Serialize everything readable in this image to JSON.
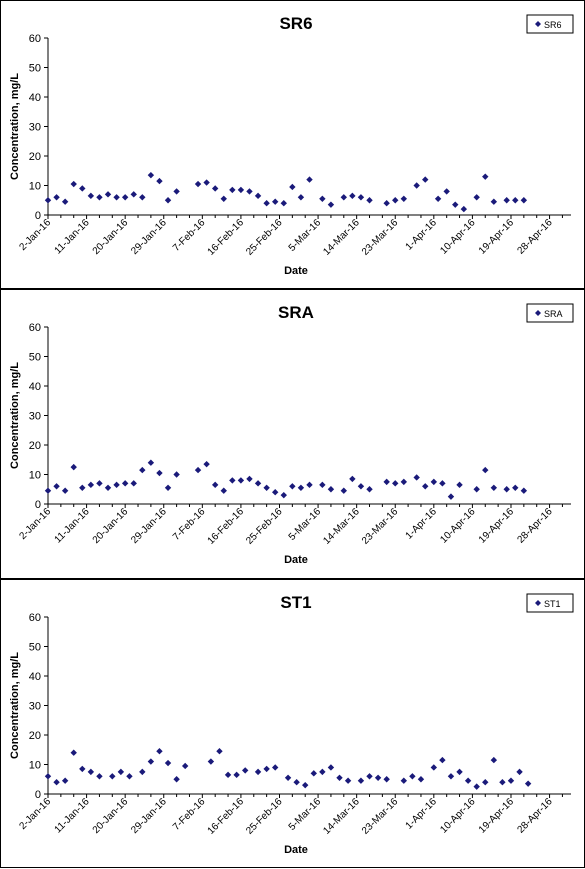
{
  "chart_data": [
    {
      "type": "scatter",
      "title": "SR6",
      "xlabel": "Date",
      "ylabel": "Concentration, mg/L",
      "ylim": [
        0,
        60
      ],
      "yticks": [
        0,
        10,
        20,
        30,
        40,
        50,
        60
      ],
      "xlim": [
        "2016-01-02",
        "2016-05-03"
      ],
      "xtick_labels": [
        "2-Jan-16",
        "11-Jan-16",
        "20-Jan-16",
        "29-Jan-16",
        "7-Feb-16",
        "16-Feb-16",
        "25-Feb-16",
        "5-Mar-16",
        "14-Mar-16",
        "23-Mar-16",
        "1-Apr-16",
        "10-Apr-16",
        "19-Apr-16",
        "28-Apr-16"
      ],
      "grid": false,
      "legend": "top-right",
      "marker": "diamond",
      "color": "#1a1a7a",
      "series": [
        {
          "name": "SR6",
          "points": [
            [
              "2016-01-02",
              5
            ],
            [
              "2016-01-04",
              6
            ],
            [
              "2016-01-06",
              4.5
            ],
            [
              "2016-01-08",
              10.5
            ],
            [
              "2016-01-10",
              9
            ],
            [
              "2016-01-12",
              6.5
            ],
            [
              "2016-01-14",
              6
            ],
            [
              "2016-01-16",
              7
            ],
            [
              "2016-01-18",
              6
            ],
            [
              "2016-01-20",
              6
            ],
            [
              "2016-01-22",
              7
            ],
            [
              "2016-01-24",
              6
            ],
            [
              "2016-01-26",
              13.5
            ],
            [
              "2016-01-28",
              11.5
            ],
            [
              "2016-01-30",
              5
            ],
            [
              "2016-02-01",
              8
            ],
            [
              "2016-02-06",
              10.5
            ],
            [
              "2016-02-08",
              11
            ],
            [
              "2016-02-10",
              9
            ],
            [
              "2016-02-12",
              5.5
            ],
            [
              "2016-02-14",
              8.5
            ],
            [
              "2016-02-16",
              8.5
            ],
            [
              "2016-02-18",
              8
            ],
            [
              "2016-02-20",
              6.5
            ],
            [
              "2016-02-22",
              4
            ],
            [
              "2016-02-24",
              4.5
            ],
            [
              "2016-02-26",
              4
            ],
            [
              "2016-02-28",
              9.5
            ],
            [
              "2016-03-01",
              6
            ],
            [
              "2016-03-03",
              12
            ],
            [
              "2016-03-06",
              5.5
            ],
            [
              "2016-03-08",
              3.5
            ],
            [
              "2016-03-11",
              6
            ],
            [
              "2016-03-13",
              6.5
            ],
            [
              "2016-03-15",
              6
            ],
            [
              "2016-03-17",
              5
            ],
            [
              "2016-03-21",
              4
            ],
            [
              "2016-03-23",
              5
            ],
            [
              "2016-03-25",
              5.5
            ],
            [
              "2016-03-28",
              10
            ],
            [
              "2016-03-30",
              12
            ],
            [
              "2016-04-02",
              5.5
            ],
            [
              "2016-04-04",
              8
            ],
            [
              "2016-04-06",
              3.5
            ],
            [
              "2016-04-08",
              2
            ],
            [
              "2016-04-11",
              6
            ],
            [
              "2016-04-13",
              13
            ],
            [
              "2016-04-15",
              4.5
            ],
            [
              "2016-04-18",
              5
            ],
            [
              "2016-04-20",
              5
            ],
            [
              "2016-04-22",
              5
            ]
          ]
        }
      ]
    },
    {
      "type": "scatter",
      "title": "SRA",
      "xlabel": "Date",
      "ylabel": "Concentration, mg/L",
      "ylim": [
        0,
        60
      ],
      "yticks": [
        0,
        10,
        20,
        30,
        40,
        50,
        60
      ],
      "xlim": [
        "2016-01-02",
        "2016-05-03"
      ],
      "xtick_labels": [
        "2-Jan-16",
        "11-Jan-16",
        "20-Jan-16",
        "29-Jan-16",
        "7-Feb-16",
        "16-Feb-16",
        "25-Feb-16",
        "5-Mar-16",
        "14-Mar-16",
        "23-Mar-16",
        "1-Apr-16",
        "10-Apr-16",
        "19-Apr-16",
        "28-Apr-16"
      ],
      "grid": false,
      "legend": "top-right",
      "marker": "diamond",
      "color": "#1a1a7a",
      "series": [
        {
          "name": "SRA",
          "points": [
            [
              "2016-01-02",
              4.5
            ],
            [
              "2016-01-04",
              6
            ],
            [
              "2016-01-06",
              4.5
            ],
            [
              "2016-01-08",
              12.5
            ],
            [
              "2016-01-10",
              5.5
            ],
            [
              "2016-01-12",
              6.5
            ],
            [
              "2016-01-14",
              7
            ],
            [
              "2016-01-16",
              5.5
            ],
            [
              "2016-01-18",
              6.5
            ],
            [
              "2016-01-20",
              7
            ],
            [
              "2016-01-22",
              7
            ],
            [
              "2016-01-24",
              11.5
            ],
            [
              "2016-01-26",
              14
            ],
            [
              "2016-01-28",
              10.5
            ],
            [
              "2016-01-30",
              5.5
            ],
            [
              "2016-02-01",
              10
            ],
            [
              "2016-02-06",
              11.5
            ],
            [
              "2016-02-08",
              13.5
            ],
            [
              "2016-02-10",
              6.5
            ],
            [
              "2016-02-12",
              4.5
            ],
            [
              "2016-02-14",
              8
            ],
            [
              "2016-02-16",
              8
            ],
            [
              "2016-02-18",
              8.5
            ],
            [
              "2016-02-20",
              7
            ],
            [
              "2016-02-22",
              5.5
            ],
            [
              "2016-02-24",
              4
            ],
            [
              "2016-02-26",
              3
            ],
            [
              "2016-02-28",
              6
            ],
            [
              "2016-03-01",
              5.5
            ],
            [
              "2016-03-03",
              6.5
            ],
            [
              "2016-03-06",
              6.5
            ],
            [
              "2016-03-08",
              5
            ],
            [
              "2016-03-11",
              4.5
            ],
            [
              "2016-03-13",
              8.5
            ],
            [
              "2016-03-15",
              6
            ],
            [
              "2016-03-17",
              5
            ],
            [
              "2016-03-21",
              7.5
            ],
            [
              "2016-03-23",
              7
            ],
            [
              "2016-03-25",
              7.5
            ],
            [
              "2016-03-28",
              9
            ],
            [
              "2016-03-30",
              6
            ],
            [
              "2016-04-01",
              7.5
            ],
            [
              "2016-04-03",
              7
            ],
            [
              "2016-04-05",
              2.5
            ],
            [
              "2016-04-07",
              6.5
            ],
            [
              "2016-04-11",
              5
            ],
            [
              "2016-04-13",
              11.5
            ],
            [
              "2016-04-15",
              5.5
            ],
            [
              "2016-04-18",
              5
            ],
            [
              "2016-04-20",
              5.5
            ],
            [
              "2016-04-22",
              4.5
            ]
          ]
        }
      ]
    },
    {
      "type": "scatter",
      "title": "ST1",
      "xlabel": "Date",
      "ylabel": "Concentration, mg/L",
      "ylim": [
        0,
        60
      ],
      "yticks": [
        0,
        10,
        20,
        30,
        40,
        50,
        60
      ],
      "xlim": [
        "2016-01-02",
        "2016-05-03"
      ],
      "xtick_labels": [
        "2-Jan-16",
        "11-Jan-16",
        "20-Jan-16",
        "29-Jan-16",
        "7-Feb-16",
        "16-Feb-16",
        "25-Feb-16",
        "5-Mar-16",
        "14-Mar-16",
        "23-Mar-16",
        "1-Apr-16",
        "10-Apr-16",
        "19-Apr-16",
        "28-Apr-16"
      ],
      "grid": false,
      "legend": "top-right",
      "marker": "diamond",
      "color": "#1a1a7a",
      "series": [
        {
          "name": "ST1",
          "points": [
            [
              "2016-01-02",
              6
            ],
            [
              "2016-01-04",
              4
            ],
            [
              "2016-01-06",
              4.5
            ],
            [
              "2016-01-08",
              14
            ],
            [
              "2016-01-10",
              8.5
            ],
            [
              "2016-01-12",
              7.5
            ],
            [
              "2016-01-14",
              6
            ],
            [
              "2016-01-17",
              6
            ],
            [
              "2016-01-19",
              7.5
            ],
            [
              "2016-01-21",
              6
            ],
            [
              "2016-01-24",
              7.5
            ],
            [
              "2016-01-26",
              11
            ],
            [
              "2016-01-28",
              14.5
            ],
            [
              "2016-01-30",
              10.5
            ],
            [
              "2016-02-01",
              5
            ],
            [
              "2016-02-03",
              9.5
            ],
            [
              "2016-02-09",
              11
            ],
            [
              "2016-02-11",
              14.5
            ],
            [
              "2016-02-13",
              6.5
            ],
            [
              "2016-02-15",
              6.5
            ],
            [
              "2016-02-17",
              8
            ],
            [
              "2016-02-20",
              7.5
            ],
            [
              "2016-02-22",
              8.5
            ],
            [
              "2016-02-24",
              9
            ],
            [
              "2016-02-27",
              5.5
            ],
            [
              "2016-02-29",
              4
            ],
            [
              "2016-03-02",
              3
            ],
            [
              "2016-03-04",
              7
            ],
            [
              "2016-03-06",
              7.5
            ],
            [
              "2016-03-08",
              9
            ],
            [
              "2016-03-10",
              5.5
            ],
            [
              "2016-03-12",
              4.5
            ],
            [
              "2016-03-15",
              4.5
            ],
            [
              "2016-03-17",
              6
            ],
            [
              "2016-03-19",
              5.5
            ],
            [
              "2016-03-21",
              5
            ],
            [
              "2016-03-25",
              4.5
            ],
            [
              "2016-03-27",
              6
            ],
            [
              "2016-03-29",
              5
            ],
            [
              "2016-04-01",
              9
            ],
            [
              "2016-04-03",
              11.5
            ],
            [
              "2016-04-05",
              6
            ],
            [
              "2016-04-07",
              7.5
            ],
            [
              "2016-04-09",
              4.5
            ],
            [
              "2016-04-11",
              2.5
            ],
            [
              "2016-04-13",
              4
            ],
            [
              "2016-04-15",
              11.5
            ],
            [
              "2016-04-17",
              4
            ],
            [
              "2016-04-19",
              4.5
            ],
            [
              "2016-04-21",
              7.5
            ],
            [
              "2016-04-23",
              3.5
            ]
          ]
        }
      ]
    }
  ]
}
